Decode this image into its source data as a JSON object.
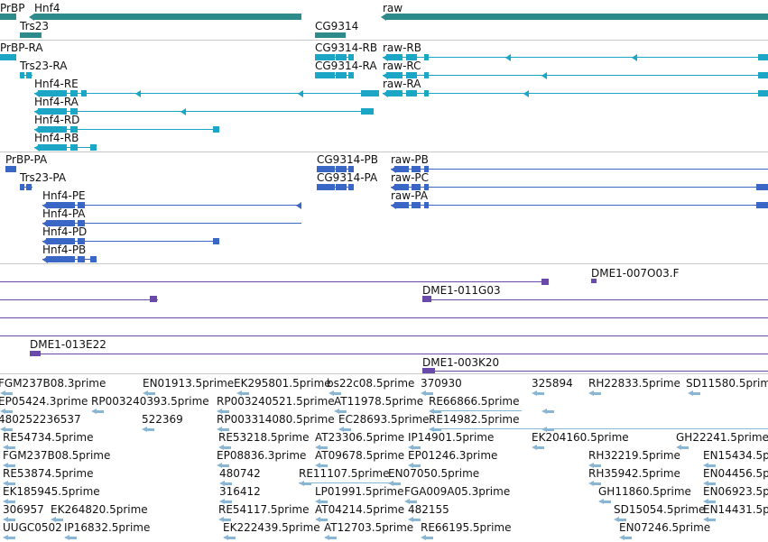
{
  "colors": {
    "gene": "#2e8b8b",
    "mrna_light": "#1aa6c4",
    "mrna_dark": "#3a66c6",
    "clone": "#6a4aa8",
    "est": "#8ab6d6",
    "separator": "#c9c9c9"
  },
  "gene_track": {
    "labels": [
      "PrBP",
      "Hnf4",
      "raw",
      "Trs23",
      "CG9314"
    ]
  },
  "transcript_track_1": {
    "labels": [
      "PrBP-RA",
      "CG9314-RB",
      "raw-RB",
      "Trs23-RA",
      "CG9314-RA",
      "raw-RC",
      "Hnf4-RE",
      "raw-RA",
      "Hnf4-RA",
      "Hnf4-RD",
      "Hnf4-RB"
    ]
  },
  "transcript_track_2": {
    "labels": [
      "PrBP-PA",
      "CG9314-PB",
      "raw-PB",
      "Trs23-PA",
      "CG9314-PA",
      "raw-PC",
      "Hnf4-PE",
      "raw-PA",
      "Hnf4-PA",
      "Hnf4-PD",
      "Hnf4-PB"
    ]
  },
  "clone_track": {
    "labels": [
      "DME1-007O03.F",
      "DME1-011G03",
      "DME1-013E22",
      "DME1-003K20"
    ]
  },
  "est_track": {
    "labels": [
      "FGM237B08.3prime",
      "EN01913.5prime",
      "EK295801.5prime",
      "bs22c08.5prime",
      "370930",
      "325894",
      "RH22833.5prime",
      "SD11580.5prime",
      "EP05424.3prime",
      "RP003240393.5prime",
      "RP003240521.5prime",
      "AT11978.5prime",
      "RE66866.5prime",
      "480252236537",
      "522369",
      "RP003314080.5prime",
      "EC28693.5prime",
      "RE14982.5prime",
      "RE54734.5prime",
      "RE53218.5prime",
      "AT23306.5prime",
      "IP14901.5prime",
      "EK204160.5prime",
      "GH22241.5prime",
      "FGM237B08.5prime",
      "EP08836.3prime",
      "AT09678.5prime",
      "EP01246.3prime",
      "RH32219.5prime",
      "EN15434.5p",
      "RE53874.5prime",
      "480742",
      "RE11107.5prime",
      "EN07050.5prime",
      "RH35942.5prime",
      "EN04456.5p",
      "EK185945.5prime",
      "316412",
      "LP01991.5prime",
      "FGA009A05.3prime",
      "GH11860.5prime",
      "EN06923.5p",
      "306957",
      "EK264820.5prime",
      "RE54117.5prime",
      "AT04214.5prime",
      "482155",
      "SD15054.5prime",
      "EN14431.5p",
      "UUGC0502",
      "IP16832.5prime",
      "EK222439.5prime",
      "AT12703.5prime",
      "RE66195.5prime",
      "EN07246.5prime"
    ]
  }
}
